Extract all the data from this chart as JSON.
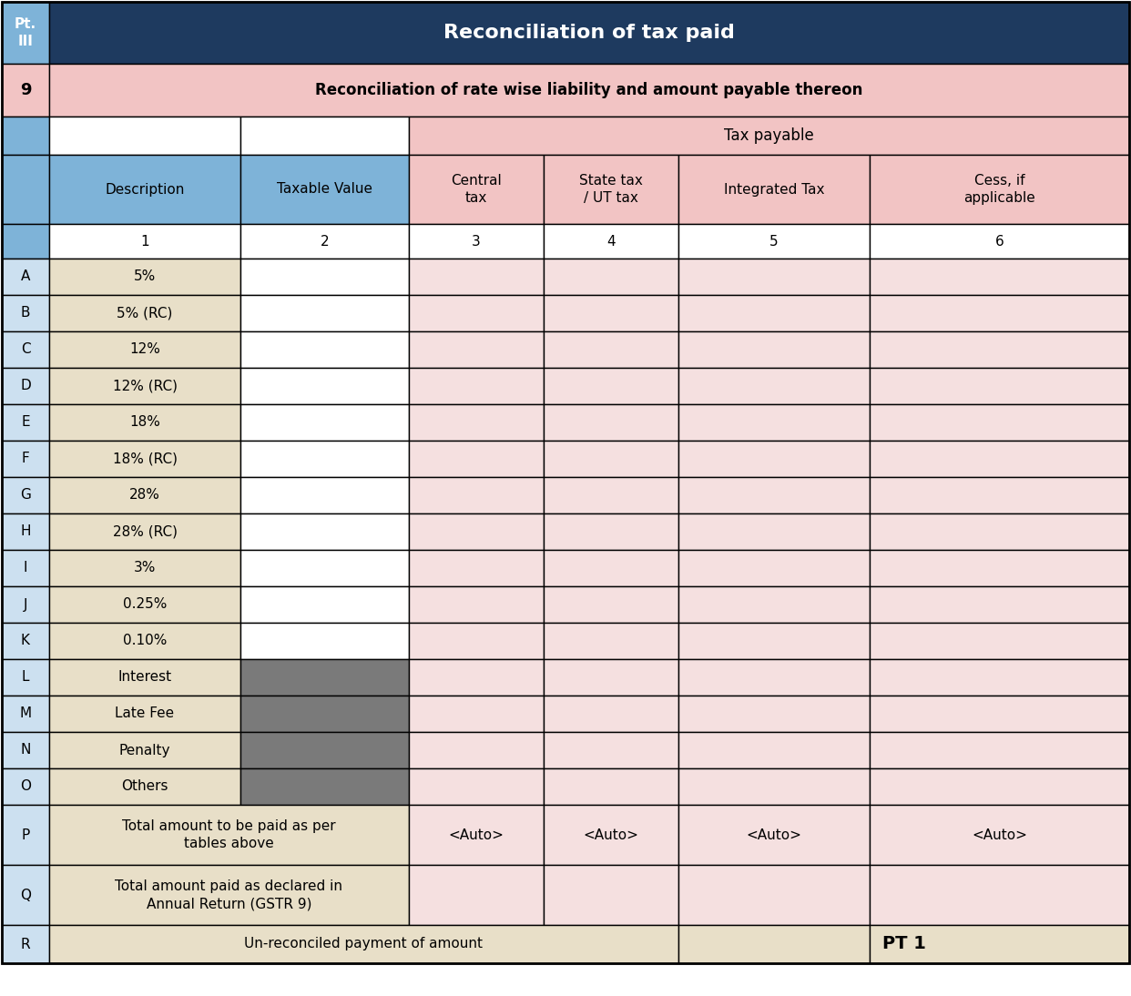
{
  "title_header": "Reconciliation of tax paid",
  "subtitle": "Reconciliation of rate wise liability and amount payable thereon",
  "pt_label": "Pt.\nIII",
  "row9_label": "9",
  "tax_payable_label": "Tax payable",
  "col_headers": [
    "Description",
    "Taxable Value",
    "Central\ntax",
    "State tax\n/ UT tax",
    "Integrated Tax",
    "Cess, if\napplicable"
  ],
  "col_numbers": [
    "1",
    "2",
    "3",
    "4",
    "5",
    "6"
  ],
  "row_labels": [
    "A",
    "B",
    "C",
    "D",
    "E",
    "F",
    "G",
    "H",
    "I",
    "J",
    "K",
    "L",
    "M",
    "N",
    "O",
    "P",
    "Q",
    "R"
  ],
  "row_descriptions": [
    "5%",
    "5% (RC)",
    "12%",
    "12% (RC)",
    "18%",
    "18% (RC)",
    "28%",
    "28% (RC)",
    "3%",
    "0.25%",
    "0.10%",
    "Interest",
    "Late Fee",
    "Penalty",
    "Others",
    "Total amount to be paid as per\ntables above",
    "Total amount paid as declared in\nAnnual Return (GSTR 9)",
    "Un-reconciled payment of amount"
  ],
  "colors": {
    "header_bg": "#1e3a5f",
    "header_text": "#ffffff",
    "row9_bg": "#f2c4c4",
    "tax_payable_bg": "#f2c4c4",
    "col_header_bg_left": "#7eb3d8",
    "col_header_bg_right": "#f2c4c4",
    "row_label_col_bg": "#cce0f0",
    "desc_col_bg_normal": "#e8dfc8",
    "taxable_val_bg_normal": "#ffffff",
    "taxable_val_bg_lmno": "#7a7a7a",
    "tax_cols_bg": "#f5e0e0",
    "row_R_bg": "#e8dfc8",
    "border_color": "#000000"
  },
  "figsize": [
    12.42,
    10.94
  ],
  "dpi": 100
}
